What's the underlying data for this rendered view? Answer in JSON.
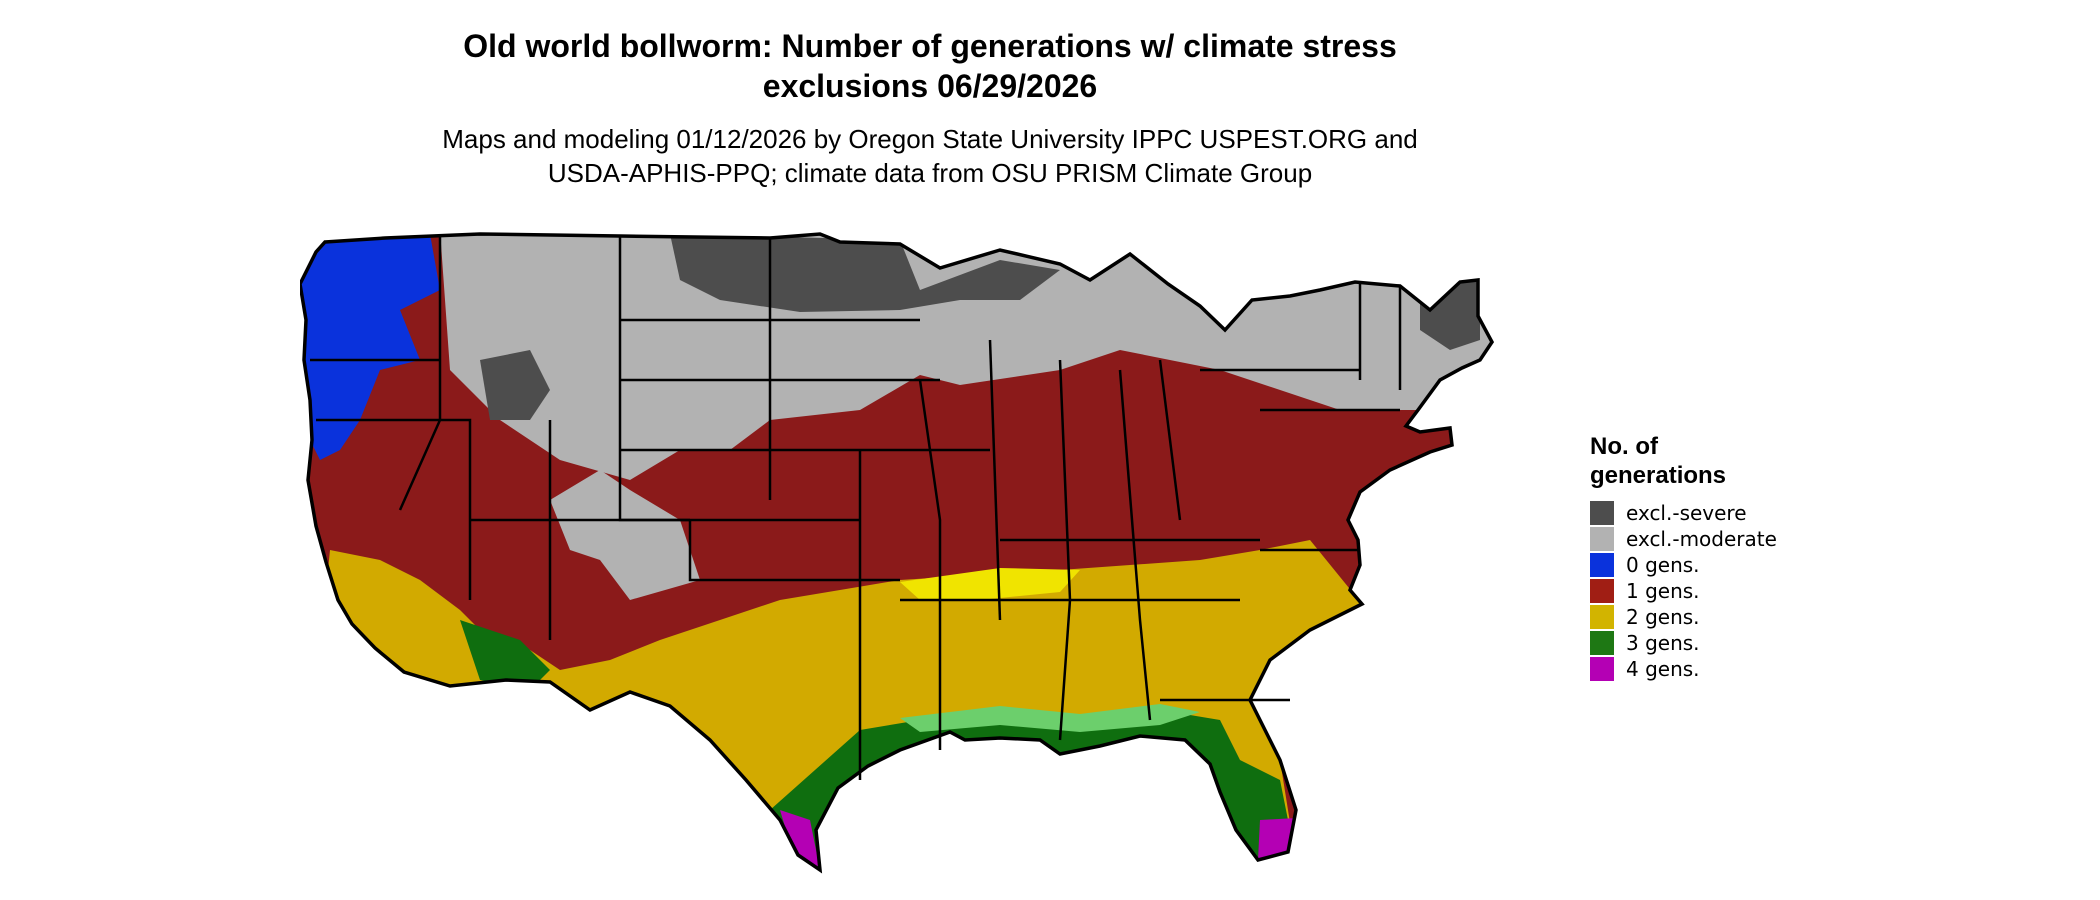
{
  "title": {
    "line1": "Old world bollworm: Number of generations w/ climate stress",
    "line2": "exclusions 06/29/2026"
  },
  "subtitle": {
    "line1": "Maps and modeling 01/12/2026 by Oregon State University IPPC USPEST.ORG and",
    "line2": "USDA-APHIS-PPQ; climate data from OSU PRISM Climate Group"
  },
  "legend": {
    "title_line1": "No. of",
    "title_line2": "generations",
    "items": [
      {
        "label": "excl.-severe",
        "color": "#4d4d4d"
      },
      {
        "label": "excl.-moderate",
        "color": "#b2b2b2"
      },
      {
        "label": "0 gens.",
        "color": "#0a32dc"
      },
      {
        "label": "1 gens.",
        "color": "#a01e14"
      },
      {
        "label": "2 gens.",
        "color": "#d2b400"
      },
      {
        "label": "3 gens.",
        "color": "#1e7814"
      },
      {
        "label": "4 gens.",
        "color": "#b400b4"
      }
    ]
  },
  "map_colors": {
    "excl_severe": "#4d4d4d",
    "excl_moderate": "#b2b2b2",
    "gens_0": "#0a32dc",
    "gens_1": "#8b1a1a",
    "gens_2": "#d2aa00",
    "gens_2_light": "#f0e400",
    "gens_3": "#0f6e0f",
    "gens_3_light": "#6ccf6c",
    "gens_4": "#b400b4"
  }
}
